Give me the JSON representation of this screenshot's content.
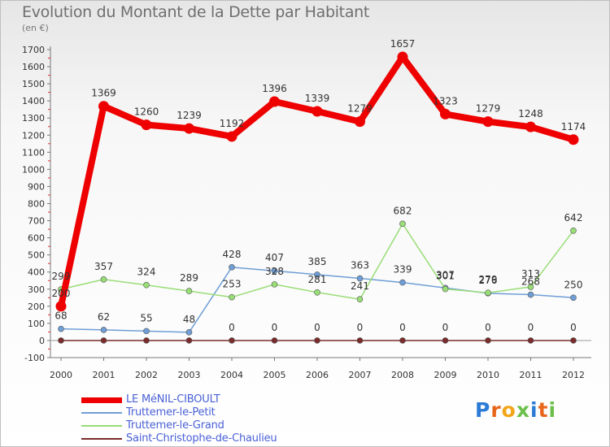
{
  "header": {
    "title": "Evolution du Montant de la Dette par Habitant",
    "subtitle": "(en €)"
  },
  "logo": {
    "text": "Proxiti",
    "colors": [
      "#2b7bd6",
      "#e8661c",
      "#f2a51a",
      "#6cc04a",
      "#2b7bd6",
      "#e8661c",
      "#6cc04a"
    ]
  },
  "chart_data": {
    "type": "line",
    "title": "Evolution du Montant de la Dette par Habitant",
    "subtitle": "(en €)",
    "xlabel": "",
    "ylabel": "",
    "categories": [
      "2000",
      "2001",
      "2002",
      "2003",
      "2004",
      "2005",
      "2006",
      "2007",
      "2008",
      "2009",
      "2010",
      "2011",
      "2012"
    ],
    "ylim": [
      -100,
      1700
    ],
    "yticks": [
      -100,
      0,
      100,
      200,
      300,
      400,
      500,
      600,
      700,
      800,
      900,
      1000,
      1100,
      1200,
      1300,
      1400,
      1500,
      1600,
      1700
    ],
    "grid": false,
    "legend_position": "bottom-left",
    "series": [
      {
        "name": "LE MéNIL-CIBOULT",
        "color": "#ee0000",
        "values": [
          200,
          1369,
          1260,
          1239,
          1192,
          1396,
          1339,
          1279,
          1657,
          1323,
          1279,
          1248,
          1174
        ],
        "labels": [
          "200",
          "1369",
          "1260",
          "1239",
          "1192",
          "1396",
          "1339",
          "1279",
          "1657",
          "1323",
          "1279",
          "1248",
          "1174"
        ]
      },
      {
        "name": "Truttemer-le-Petit",
        "color": "#6f9ed6",
        "values": [
          68,
          62,
          55,
          48,
          428,
          407,
          385,
          363,
          339,
          307,
          276,
          268,
          250
        ],
        "labels": [
          "68",
          "62",
          "55",
          "48",
          "428",
          "407",
          "385",
          "363",
          "339",
          "307",
          "276",
          "268",
          "250"
        ]
      },
      {
        "name": "Truttemer-le-Grand",
        "color": "#99dd77",
        "values": [
          299,
          357,
          324,
          289,
          253,
          328,
          281,
          241,
          682,
          301,
          279,
          313,
          642
        ],
        "labels": [
          "299",
          "357",
          "324",
          "289",
          "253",
          "328",
          "281",
          "241",
          "682",
          "301",
          "279",
          "313",
          "642"
        ]
      },
      {
        "name": "Saint-Christophe-de-Chaulieu",
        "color": "#7a2b2b",
        "values": [
          0,
          0,
          0,
          0,
          0,
          0,
          0,
          0,
          0,
          0,
          0,
          0,
          0
        ],
        "labels": [
          "",
          "",
          "",
          "",
          "0",
          "0",
          "0",
          "0",
          "0",
          "0",
          "0",
          "0",
          "0"
        ]
      }
    ]
  }
}
